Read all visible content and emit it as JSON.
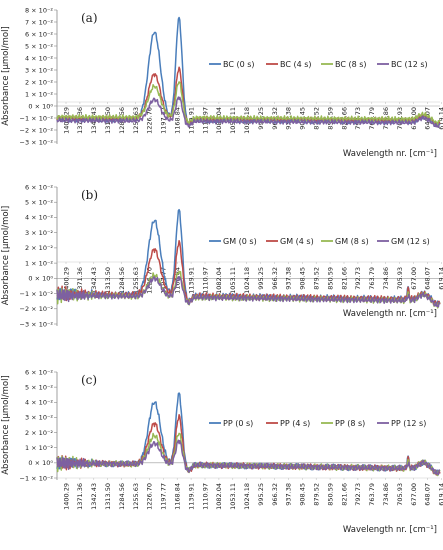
{
  "chart_data": [
    {
      "type": "line",
      "panel_label": "(a)",
      "ylabel": "Absorbance [µmol/mol]",
      "xlabel": "Wavelength nr.  [cm⁻¹]",
      "x_tick_labels": [
        "1400.29",
        "1371.36",
        "1342.43",
        "1313.50",
        "1284.56",
        "1255.63",
        "1226.70",
        "1197.77",
        "1168.84",
        "1139.91",
        "1110.97",
        "1082.04",
        "1053.11",
        "1024.18",
        "995.25",
        "966.32",
        "937.38",
        "908.45",
        "879.52",
        "850.59",
        "821.66",
        "792.73",
        "763.79",
        "734.86",
        "705.93",
        "677.00",
        "648.07",
        "619.14"
      ],
      "y_tick_labels": [
        "8 × 10⁻²",
        "7 × 10⁻²",
        "6 × 10⁻²",
        "5 × 10⁻²",
        "4 × 10⁻²",
        "3 × 10⁻²",
        "2 × 10⁻²",
        "1 × 10⁻²",
        "0 × 10⁰",
        "−1 × 10⁻²",
        "−2 × 10⁻²",
        "−3 × 10⁻²"
      ],
      "y_tick_values": [
        0.08,
        0.07,
        0.06,
        0.05,
        0.04,
        0.03,
        0.02,
        0.01,
        0,
        -0.01,
        -0.02,
        -0.03
      ],
      "ylim": [
        -0.03,
        0.08
      ],
      "xlim": [
        1400.29,
        605
      ],
      "grid": false,
      "legend_position": "top-right",
      "series": [
        {
          "name": "BC (0 s)",
          "color": "#4a7ebb",
          "base": -0.011,
          "peak1": 0.062,
          "peak2": 0.074
        },
        {
          "name": "BC (4 s)",
          "color": "#be4b48",
          "base": -0.01,
          "peak1": 0.027,
          "peak2": 0.032
        },
        {
          "name": "BC (8 s)",
          "color": "#98b954",
          "base": -0.009,
          "peak1": 0.017,
          "peak2": 0.021
        },
        {
          "name": "BC (12 s)",
          "color": "#7d60a0",
          "base": -0.012,
          "peak1": 0.006,
          "peak2": 0.008
        }
      ]
    },
    {
      "type": "line",
      "panel_label": "(b)",
      "ylabel": "Absorbance [µmol/mol]",
      "xlabel": "Wavelength nr.  [cm⁻¹]",
      "x_tick_labels": [
        "1400.29",
        "1371.36",
        "1342.43",
        "1313.50",
        "1284.56",
        "1255.63",
        "1226.70",
        "1197.77",
        "1168.84",
        "1139.91",
        "1110.97",
        "1082.04",
        "1053.11",
        "1024.18",
        "995.25",
        "966.32",
        "937.38",
        "908.45",
        "879.52",
        "850.59",
        "821.66",
        "792.73",
        "763.79",
        "734.86",
        "705.93",
        "677.00",
        "648.07",
        "619.14"
      ],
      "y_tick_labels": [
        "6 × 10⁻²",
        "5 × 10⁻²",
        "4 × 10⁻²",
        "3 × 10⁻²",
        "2 × 10⁻²",
        "1 × 10⁻²",
        "0 × 10⁰",
        "−1 × 10⁻²",
        "−2 × 10⁻²",
        "−3 × 10⁻²"
      ],
      "y_tick_values": [
        0.06,
        0.05,
        0.04,
        0.03,
        0.02,
        0.01,
        0,
        -0.01,
        -0.02,
        -0.03
      ],
      "ylim": [
        -0.03,
        0.06
      ],
      "xlim": [
        1400.29,
        605
      ],
      "grid": false,
      "legend_position": "top-right",
      "series": [
        {
          "name": "GM (0 s)",
          "color": "#4a7ebb",
          "base": -0.01,
          "peak1": 0.039,
          "peak2": 0.046
        },
        {
          "name": "GM (4 s)",
          "color": "#be4b48",
          "base": -0.01,
          "peak1": 0.02,
          "peak2": 0.025
        },
        {
          "name": "GM (8 s)",
          "color": "#98b954",
          "base": -0.011,
          "peak1": 0.003,
          "peak2": 0.006
        },
        {
          "name": "GM (12 s)",
          "color": "#7d60a0",
          "base": -0.011,
          "peak1": 0.001,
          "peak2": 0.002
        }
      ]
    },
    {
      "type": "line",
      "panel_label": "(c)",
      "ylabel": "Absorbance [µmol/mol]",
      "xlabel": "Wavelength nr.  [cm⁻¹]",
      "x_tick_labels": [
        "1400.29",
        "1371.36",
        "1342.43",
        "1313.50",
        "1284.56",
        "1255.63",
        "1226.70",
        "1197.77",
        "1168.84",
        "1139.91",
        "1110.97",
        "1082.04",
        "1053.11",
        "1024.18",
        "995.25",
        "966.32",
        "937.38",
        "908.45",
        "879.52",
        "850.59",
        "821.66",
        "792.73",
        "763.79",
        "734.86",
        "705.93",
        "677.00",
        "648.07",
        "619.14"
      ],
      "y_tick_labels": [
        "6 × 10⁻²",
        "5 × 10⁻²",
        "4 × 10⁻²",
        "3 × 10⁻²",
        "2 × 10⁻²",
        "1 × 10⁻²",
        "0 × 10⁰",
        "−1 × 10⁻²"
      ],
      "y_tick_values": [
        0.06,
        0.05,
        0.04,
        0.03,
        0.02,
        0.01,
        0,
        -0.01
      ],
      "ylim": [
        -0.01,
        0.06
      ],
      "xlim": [
        1400.29,
        605
      ],
      "grid": false,
      "legend_position": "top-right",
      "series": [
        {
          "name": "PP (0 s)",
          "color": "#4a7ebb",
          "base": 0.0,
          "peak1": 0.041,
          "peak2": 0.047
        },
        {
          "name": "PP (4 s)",
          "color": "#be4b48",
          "base": 0.0,
          "peak1": 0.027,
          "peak2": 0.032
        },
        {
          "name": "PP (8 s)",
          "color": "#98b954",
          "base": 0.0,
          "peak1": 0.019,
          "peak2": 0.021
        },
        {
          "name": "PP (12 s)",
          "color": "#7d60a0",
          "base": 0.0,
          "peak1": 0.014,
          "peak2": 0.016
        }
      ]
    }
  ]
}
